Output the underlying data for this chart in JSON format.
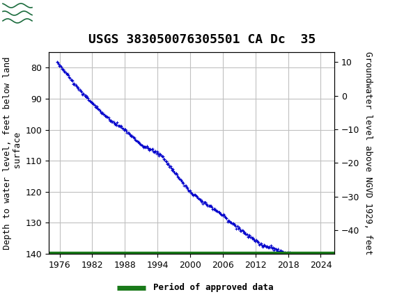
{
  "title": "USGS 383050076305501 CA Dc  35",
  "ylabel_left": "Depth to water level, feet below land\n surface",
  "ylabel_right": "Groundwater level above NGVD 1929, feet",
  "ylim_left": [
    140,
    75
  ],
  "ylim_right": [
    -47,
    13
  ],
  "yticks_left": [
    80,
    90,
    100,
    110,
    120,
    130,
    140
  ],
  "yticks_right": [
    10,
    0,
    -10,
    -20,
    -30,
    -40
  ],
  "xticks": [
    1976,
    1982,
    1988,
    1994,
    2000,
    2006,
    2012,
    2018,
    2024
  ],
  "xlim": [
    1974.0,
    2026.5
  ],
  "line_color": "#0000CC",
  "legend_line_color": "#1a7a1a",
  "legend_label": "Period of approved data",
  "bg_color": "#ffffff",
  "grid_color": "#c0c0c0",
  "header_bg": "#1a6b3c",
  "title_fontsize": 13,
  "axis_fontsize": 9,
  "tick_fontsize": 9
}
